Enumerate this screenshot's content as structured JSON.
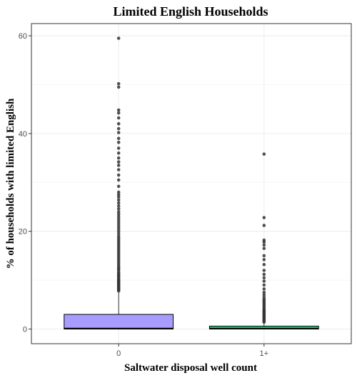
{
  "chart_data": {
    "type": "boxplot",
    "title": "Limited English Households",
    "xlabel": "Saltwater disposal well count",
    "ylabel": "% of households with limited English",
    "categories": [
      "0",
      "1+"
    ],
    "yticks": [
      0,
      20,
      40,
      60
    ],
    "ylim": [
      -3,
      62.5
    ],
    "grid": true,
    "series": [
      {
        "category": "0",
        "fill": "#a99cff",
        "min": 0,
        "q1": 0,
        "median": 0.1,
        "q3": 3,
        "whisker_high": 7.6,
        "outliers": [
          7.8,
          8.0,
          8.2,
          8.4,
          8.6,
          8.8,
          9.0,
          9.2,
          9.4,
          9.6,
          9.8,
          10.0,
          10.2,
          10.5,
          10.8,
          11.0,
          11.3,
          11.6,
          12.0,
          12.3,
          12.6,
          13.0,
          13.4,
          13.8,
          14.2,
          14.6,
          15.0,
          15.4,
          15.8,
          16.2,
          16.6,
          17.0,
          17.4,
          17.8,
          18.2,
          18.6,
          19.0,
          19.5,
          20.0,
          20.5,
          21.0,
          21.5,
          22.0,
          22.5,
          23.0,
          23.5,
          24.0,
          24.6,
          25.2,
          25.8,
          26.4,
          27.0,
          27.5,
          28.0,
          29.2,
          30.5,
          31.5,
          32.6,
          33.5,
          34.2,
          35.0,
          36.0,
          37.0,
          38.2,
          39.0,
          40.2,
          41.0,
          42.0,
          43.2,
          44.2,
          44.8,
          49.5,
          50.2,
          59.5
        ]
      },
      {
        "category": "1+",
        "fill": "#2ed58a",
        "min": 0,
        "q1": 0,
        "median": 0.1,
        "q3": 0.6,
        "whisker_high": 1.2,
        "outliers": [
          1.4,
          1.6,
          1.8,
          2.0,
          2.2,
          2.4,
          2.6,
          2.8,
          3.0,
          3.2,
          3.4,
          3.6,
          3.8,
          4.0,
          4.3,
          4.6,
          4.9,
          5.2,
          5.5,
          5.8,
          6.1,
          6.5,
          7.0,
          7.5,
          8.2,
          9.0,
          9.8,
          10.5,
          11.2,
          12.0,
          13.2,
          14.2,
          15.0,
          16.5,
          17.2,
          17.8,
          18.2,
          21.2,
          22.8,
          35.8
        ]
      }
    ]
  }
}
